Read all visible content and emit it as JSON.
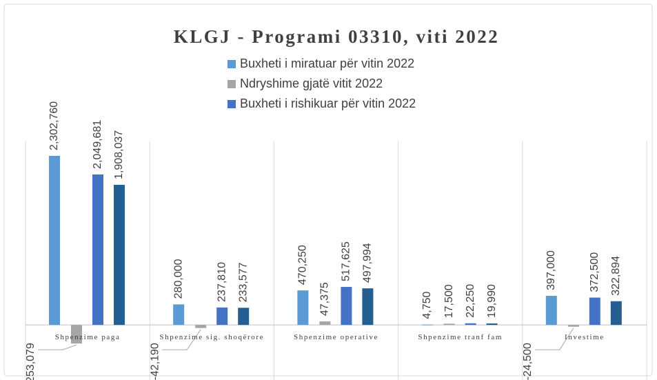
{
  "chart_data": {
    "type": "bar",
    "title": "KLGJ - Programi 03310, viti 2022",
    "categories": [
      "Shpenzime paga",
      "Shpenzime sig. shoqërore",
      "Shpenzime operative",
      "Shpenzime tranf fam",
      "Investime"
    ],
    "series": [
      {
        "name": "Buxheti i miratuar për vitin 2022",
        "color": "#5b9bd5",
        "values": [
          2302760,
          280000,
          470250,
          4750,
          397000
        ],
        "value_labels": [
          "2,302,760",
          "280,000",
          "470,250",
          "4,750",
          "397,000"
        ]
      },
      {
        "name": "Ndryshime gjatë vitit 2022",
        "color": "#a5a5a5",
        "values": [
          -253079,
          -42190,
          47375,
          17500,
          -24500
        ],
        "value_labels": [
          "-253,079",
          "-42,190",
          "47,375",
          "17,500",
          "-24,500"
        ]
      },
      {
        "name": "Buxheti i rishikuar për vitin 2022",
        "color": "#4472c4",
        "values": [
          2049681,
          237810,
          517625,
          22250,
          372500
        ],
        "value_labels": [
          "2,049,681",
          "237,810",
          "517,625",
          "22,250",
          "372,500"
        ]
      },
      {
        "color": "#255e91",
        "values": [
          1908037,
          233577,
          497994,
          19990,
          322894
        ],
        "value_labels": [
          "1,908,037",
          "233,577",
          "497,994",
          "19,990",
          "322,894"
        ]
      }
    ],
    "ylim": [
      -750000,
      2500000
    ]
  }
}
